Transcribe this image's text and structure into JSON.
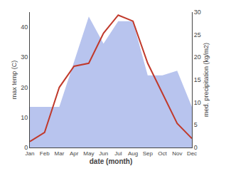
{
  "chart_data": {
    "type": "line",
    "xlabel": "date (month)",
    "ylabel": "max temp (C)",
    "y2label": "med. precipitation (kg/m2)",
    "categories": [
      "Jan",
      "Feb",
      "Mar",
      "Apr",
      "May",
      "Jun",
      "Jul",
      "Aug",
      "Sep",
      "Oct",
      "Nov",
      "Dec"
    ],
    "series": [
      {
        "type": "area",
        "axis": "y2",
        "color": "#b8c4ee",
        "values": [
          9,
          9,
          9,
          19,
          29,
          23,
          28,
          28,
          16,
          16,
          17,
          9
        ]
      },
      {
        "type": "line",
        "color": "#c0392b",
        "values": [
          2,
          5,
          20,
          27,
          28,
          38,
          44,
          42,
          28,
          18,
          8,
          3
        ]
      }
    ],
    "ylim": [
      0,
      45
    ],
    "yticks": [
      0,
      10,
      20,
      30,
      40
    ],
    "y2lim": [
      0,
      30
    ],
    "y2ticks": [
      0,
      5,
      10,
      15,
      20,
      25,
      30
    ],
    "grid": false
  }
}
